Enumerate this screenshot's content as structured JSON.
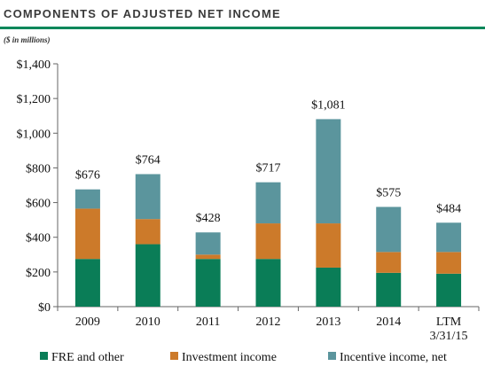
{
  "header": {
    "title": "COMPONENTS OF ADJUSTED NET INCOME",
    "units": "($ in millions)"
  },
  "colors": {
    "fre": "#0a7d57",
    "investment": "#cc7a2a",
    "incentive": "#5b959d",
    "accent_rule": "#00875a",
    "axis": "#666666"
  },
  "chart_data": {
    "type": "bar",
    "stacked": true,
    "categories": [
      "2009",
      "2010",
      "2011",
      "2012",
      "2013",
      "2014",
      "LTM 3/31/15"
    ],
    "category_lines": [
      [
        "2009"
      ],
      [
        "2010"
      ],
      [
        "2011"
      ],
      [
        "2012"
      ],
      [
        "2013"
      ],
      [
        "2014"
      ],
      [
        "LTM",
        "3/31/15"
      ]
    ],
    "series": [
      {
        "name": "FRE and other",
        "color": "#0a7d57",
        "values": [
          275,
          360,
          275,
          275,
          225,
          195,
          190
        ]
      },
      {
        "name": "Investment income",
        "color": "#cc7a2a",
        "values": [
          290,
          145,
          25,
          205,
          255,
          120,
          125
        ]
      },
      {
        "name": "Incentive income, net",
        "color": "#5b959d",
        "values": [
          111,
          259,
          128,
          237,
          601,
          260,
          169
        ]
      }
    ],
    "totals": [
      676,
      764,
      428,
      717,
      1081,
      575,
      484
    ],
    "total_labels": [
      "$676",
      "$764",
      "$428",
      "$717",
      "$1,081",
      "$575",
      "$484"
    ],
    "yticks": [
      0,
      200,
      400,
      600,
      800,
      1000,
      1200,
      1400
    ],
    "ytick_labels": [
      "$0",
      "$200",
      "$400",
      "$600",
      "$800",
      "$1,000",
      "$1,200",
      "$1,400"
    ],
    "ylim": [
      0,
      1400
    ],
    "title": "COMPONENTS OF ADJUSTED NET INCOME",
    "xlabel": "",
    "ylabel": "",
    "legend_position": "bottom",
    "grid": false
  }
}
